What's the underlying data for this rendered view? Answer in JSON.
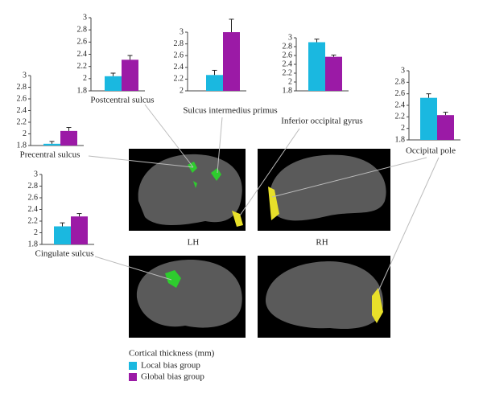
{
  "chart_data": [
    {
      "type": "bar",
      "title": "Postcentral sulcus",
      "values": [
        2.04,
        2.31
      ],
      "errors": [
        0.05,
        0.07
      ],
      "ylim": [
        1.8,
        3
      ],
      "yticks": [
        1.8,
        2,
        2.2,
        2.4,
        2.6,
        2.8,
        3
      ]
    },
    {
      "type": "bar",
      "title": "Sulcus intermedius primus",
      "values": [
        2.27,
        3.0
      ],
      "errors": [
        0.08,
        0.22
      ],
      "ylim": [
        2,
        3
      ],
      "yticks": [
        2,
        2.2,
        2.4,
        2.6,
        2.8,
        3
      ]
    },
    {
      "type": "bar",
      "title": "Inferior occipital gyrus",
      "values": [
        2.9,
        2.57
      ],
      "errors": [
        0.07,
        0.04
      ],
      "ylim": [
        1.8,
        3
      ],
      "yticks": [
        1.8,
        2,
        2.2,
        2.4,
        2.6,
        2.8,
        3
      ]
    },
    {
      "type": "bar",
      "title": "Occipital pole",
      "values": [
        2.53,
        2.23
      ],
      "errors": [
        0.07,
        0.05
      ],
      "ylim": [
        1.8,
        3
      ],
      "yticks": [
        1.8,
        2,
        2.2,
        2.4,
        2.6,
        2.8,
        3
      ]
    },
    {
      "type": "bar",
      "title": "Precentral sulcus",
      "values": [
        1.83,
        2.05
      ],
      "errors": [
        0.04,
        0.06
      ],
      "ylim": [
        1.8,
        3
      ],
      "yticks": [
        1.8,
        2,
        2.2,
        2.4,
        2.6,
        2.8,
        3
      ]
    },
    {
      "type": "bar",
      "title": "Cingulate sulcus",
      "values": [
        2.11,
        2.28
      ],
      "errors": [
        0.06,
        0.05
      ],
      "ylim": [
        1.8,
        3
      ],
      "yticks": [
        1.8,
        2,
        2.2,
        2.4,
        2.6,
        2.8,
        3
      ]
    }
  ],
  "hemisphere_labels": [
    "LH",
    "RH"
  ],
  "legend": {
    "title": "Cortical thickness (mm)",
    "items": [
      {
        "name": "Local bias group",
        "color": "#1ab8e0"
      },
      {
        "name": "Global bias group",
        "color": "#9b1aa6"
      }
    ]
  }
}
